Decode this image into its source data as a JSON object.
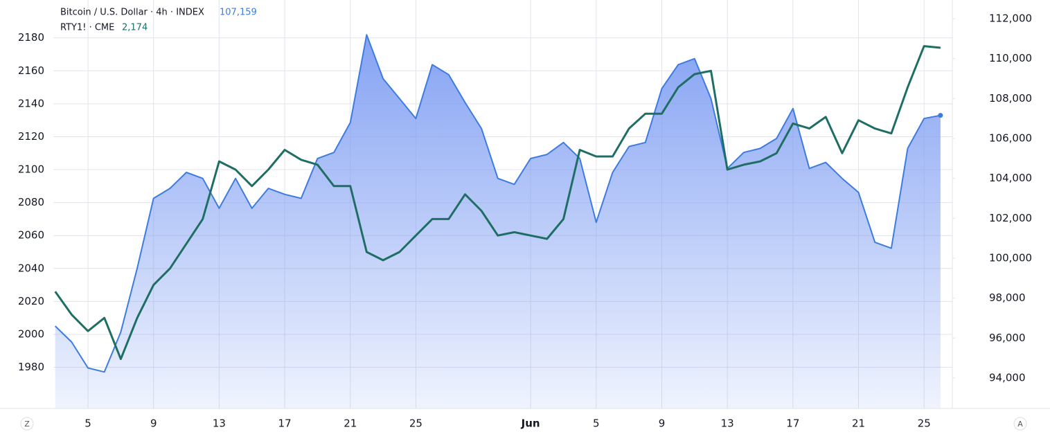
{
  "chart_data": {
    "type": "line",
    "title": "Bitcoin / U.S. Dollar · 4h · INDEX",
    "subtitle": "RTY1! · CME",
    "last_values": [
      "107,159",
      "2,174"
    ],
    "buttons": [
      "Z",
      "A"
    ],
    "categories": [
      null,
      null,
      "5",
      null,
      null,
      null,
      "9",
      null,
      null,
      null,
      "13",
      null,
      null,
      null,
      "17",
      null,
      null,
      null,
      "21",
      null,
      null,
      null,
      "25",
      null,
      null,
      null,
      null,
      null,
      null,
      "Jun",
      null,
      null,
      null,
      "5",
      null,
      null,
      null,
      "9",
      null,
      null,
      null,
      "13",
      null,
      null,
      null,
      "17",
      null,
      null,
      null,
      "21",
      null,
      null,
      null,
      "25",
      null
    ],
    "series": [
      {
        "name": "Bitcoin / U.S. Dollar",
        "color": "#3d7be0",
        "axis": "y2",
        "fill": "area",
        "values": [
          96600,
          95800,
          94500,
          94300,
          96300,
          99500,
          103000,
          103500,
          104300,
          104000,
          102500,
          104000,
          102500,
          103500,
          103200,
          103000,
          105000,
          105300,
          106800,
          111200,
          109000,
          108000,
          107000,
          109700,
          109200,
          107800,
          106500,
          104000,
          103700,
          105000,
          105200,
          105800,
          105000,
          101800,
          104300,
          105600,
          105800,
          108500,
          109700,
          110000,
          108000,
          104500,
          105300,
          105500,
          106000,
          107500,
          104500,
          104800,
          104000,
          103300,
          100800,
          100500,
          105500,
          107000,
          107159
        ]
      },
      {
        "name": "RTY1!",
        "color": "#1f6e64",
        "axis": "y",
        "values": [
          2026,
          2012,
          2002,
          2010,
          1985,
          2010,
          2030,
          2040,
          2055,
          2070,
          2105,
          2100,
          2090,
          2100,
          2112,
          2106,
          2103,
          2090,
          2090,
          2050,
          2045,
          2050,
          2060,
          2070,
          2070,
          2085,
          2075,
          2060,
          2062,
          2060,
          2058,
          2070,
          2112,
          2108,
          2108,
          2125,
          2134,
          2134,
          2150,
          2158,
          2160,
          2100,
          2103,
          2105,
          2110,
          2128,
          2125,
          2132,
          2110,
          2130,
          2125,
          2122,
          2150,
          2175,
          2174
        ]
      }
    ],
    "ylim": [
      1955,
      2203
    ],
    "yticks": [
      1980,
      2000,
      2020,
      2040,
      2060,
      2080,
      2100,
      2120,
      2140,
      2160,
      2180
    ],
    "y2lim": [
      92470,
      112940
    ],
    "y2ticks": [
      {
        "value": 94000,
        "label": "94,000"
      },
      {
        "value": 96000,
        "label": "96,000"
      },
      {
        "value": 98000,
        "label": "98,000"
      },
      {
        "value": 100000,
        "label": "100,000"
      },
      {
        "value": 102000,
        "label": "102,000"
      },
      {
        "value": 104000,
        "label": "104,000"
      },
      {
        "value": 106000,
        "label": "106,000"
      },
      {
        "value": 108000,
        "label": "108,000"
      },
      {
        "value": 110000,
        "label": "110,000"
      },
      {
        "value": 112000,
        "label": "112,000"
      }
    ],
    "grid": true
  }
}
